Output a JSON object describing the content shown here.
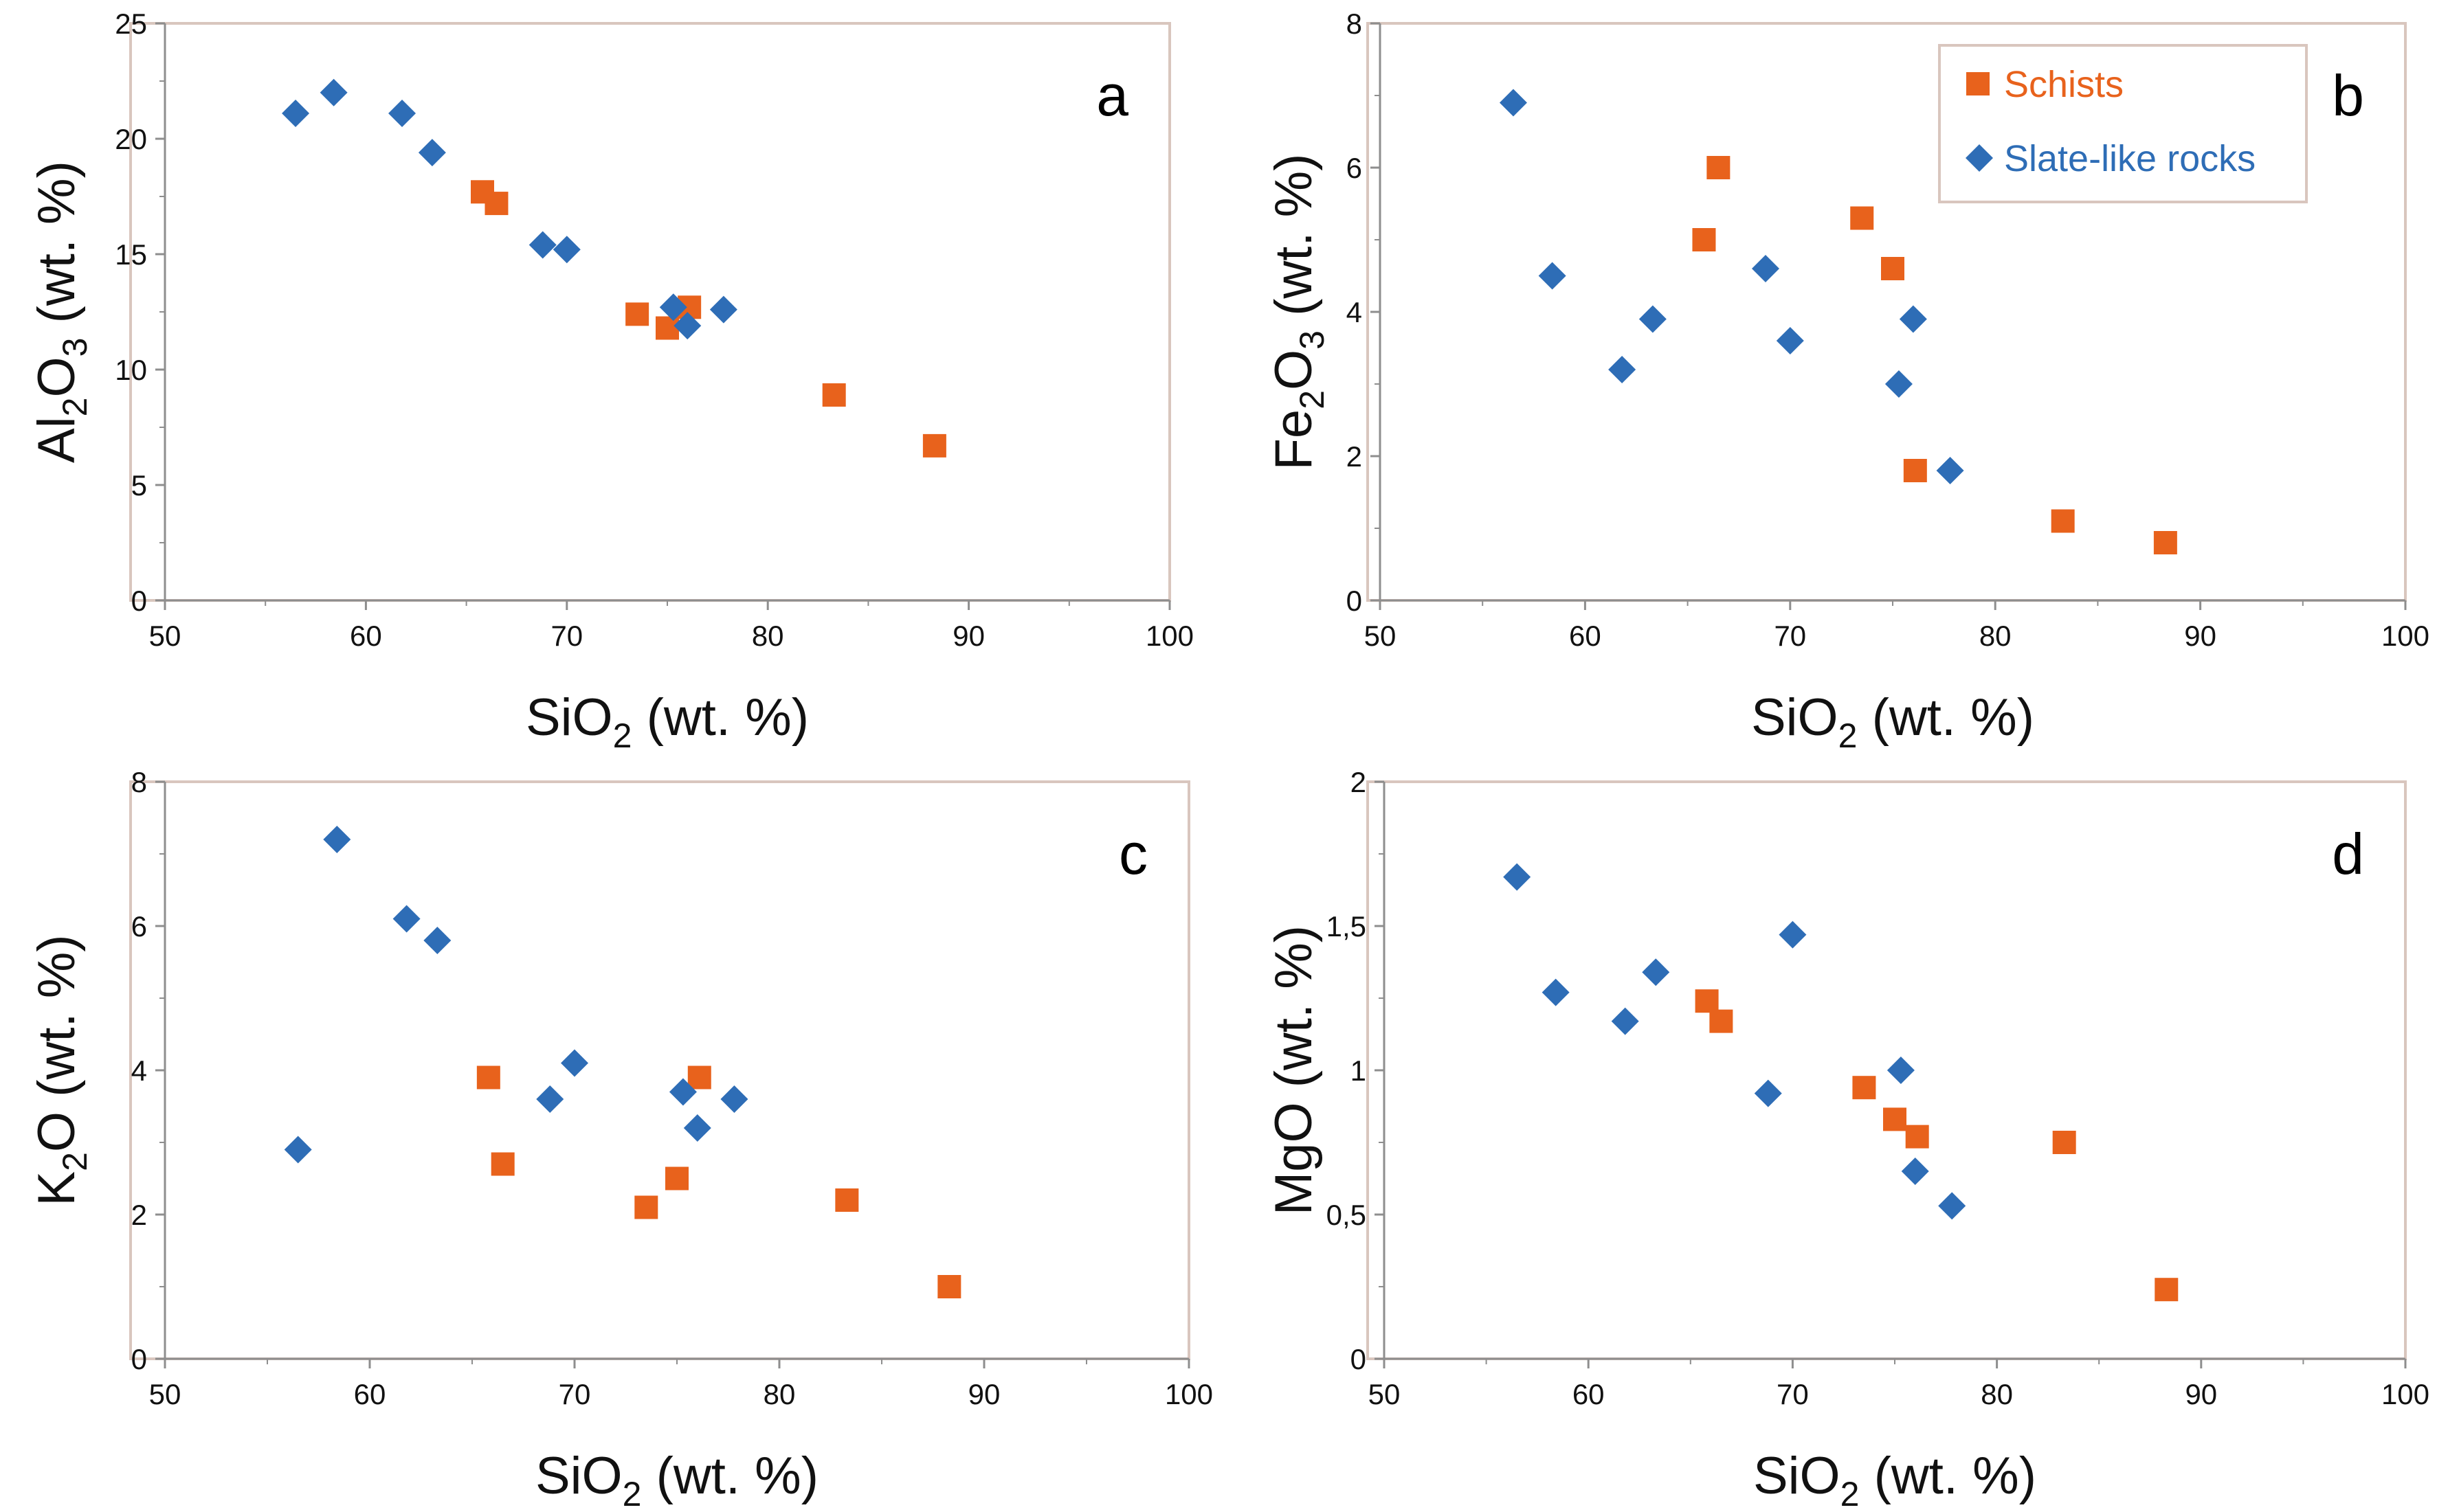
{
  "colors": {
    "schists": "#E8621C",
    "slate": "#2E6DB6",
    "frame": "#D9C6BE",
    "axis": "#8E8E8E"
  },
  "legend": {
    "entries": [
      {
        "name": "Schists",
        "marker": "square",
        "color": "#E8621C"
      },
      {
        "name": "Slate-like rocks",
        "marker": "diamond",
        "color": "#2E6DB6"
      }
    ],
    "placement": "top-right of panel b"
  },
  "chart_data": [
    {
      "panel": "a",
      "type": "scatter",
      "xlabel": {
        "main": "SiO",
        "sub": "2",
        "rest": " (wt. %)"
      },
      "ylabel": {
        "parts": [
          {
            "t": "Al",
            "s": false
          },
          {
            "t": "2",
            "s": true
          },
          {
            "t": "O",
            "s": false
          },
          {
            "t": "3",
            "s": true
          },
          {
            "t": " (wt. %)",
            "s": false
          }
        ]
      },
      "xlim": [
        50,
        100
      ],
      "ylim": [
        0,
        25
      ],
      "xticks": [
        50,
        60,
        70,
        80,
        90,
        100
      ],
      "xtick_labels": [
        "50",
        "60",
        "70",
        "80",
        "90",
        "100"
      ],
      "yticks": [
        0,
        5,
        10,
        15,
        20,
        25
      ],
      "ytick_labels": [
        "0",
        "5",
        "10",
        "15",
        "20",
        "25"
      ],
      "series": [
        {
          "name": "Schists",
          "marker": "square",
          "color": "#E8621C",
          "points": [
            [
              65.8,
              17.7
            ],
            [
              66.5,
              17.2
            ],
            [
              73.5,
              12.4
            ],
            [
              75.0,
              11.8
            ],
            [
              76.1,
              12.7
            ],
            [
              83.3,
              8.9
            ],
            [
              88.3,
              6.7
            ]
          ]
        },
        {
          "name": "Slate-like rocks",
          "marker": "diamond",
          "color": "#2E6DB6",
          "points": [
            [
              56.5,
              21.1
            ],
            [
              58.4,
              22.0
            ],
            [
              61.8,
              21.1
            ],
            [
              63.3,
              19.4
            ],
            [
              68.8,
              15.4
            ],
            [
              70.0,
              15.2
            ],
            [
              75.3,
              12.7
            ],
            [
              76.0,
              11.9
            ],
            [
              77.8,
              12.6
            ]
          ]
        }
      ]
    },
    {
      "panel": "b",
      "type": "scatter",
      "xlabel": {
        "main": "SiO",
        "sub": "2",
        "rest": " (wt. %)"
      },
      "ylabel": {
        "parts": [
          {
            "t": "Fe",
            "s": false
          },
          {
            "t": "2",
            "s": true
          },
          {
            "t": "O",
            "s": false
          },
          {
            "t": "3",
            "s": true
          },
          {
            "t": " (wt. %)",
            "s": false
          }
        ]
      },
      "xlim": [
        50,
        100
      ],
      "ylim": [
        0,
        8
      ],
      "xticks": [
        50,
        60,
        70,
        80,
        90,
        100
      ],
      "xtick_labels": [
        "50",
        "60",
        "70",
        "80",
        "90",
        "100"
      ],
      "yticks": [
        0,
        2,
        4,
        6,
        8
      ],
      "ytick_labels": [
        "0",
        "2",
        "4",
        "6",
        "8"
      ],
      "series": [
        {
          "name": "Schists",
          "marker": "square",
          "color": "#E8621C",
          "points": [
            [
              65.8,
              5.0
            ],
            [
              66.5,
              6.0
            ],
            [
              73.5,
              5.3
            ],
            [
              75.0,
              4.6
            ],
            [
              76.1,
              1.8
            ],
            [
              83.3,
              1.1
            ],
            [
              88.3,
              0.8
            ]
          ]
        },
        {
          "name": "Slate-like rocks",
          "marker": "diamond",
          "color": "#2E6DB6",
          "points": [
            [
              56.5,
              6.9
            ],
            [
              58.4,
              4.5
            ],
            [
              61.8,
              3.2
            ],
            [
              63.3,
              3.9
            ],
            [
              68.8,
              4.6
            ],
            [
              70.0,
              3.6
            ],
            [
              75.3,
              3.0
            ],
            [
              76.0,
              3.9
            ],
            [
              77.8,
              1.8
            ]
          ]
        }
      ]
    },
    {
      "panel": "c",
      "type": "scatter",
      "xlabel": {
        "main": "SiO",
        "sub": "2",
        "rest": " (wt. %)"
      },
      "ylabel": {
        "parts": [
          {
            "t": "K",
            "s": false
          },
          {
            "t": "2",
            "s": true
          },
          {
            "t": "O (wt. %)",
            "s": false
          }
        ]
      },
      "xlim": [
        50,
        100
      ],
      "ylim": [
        0,
        8
      ],
      "xticks": [
        50,
        60,
        70,
        80,
        90,
        100
      ],
      "xtick_labels": [
        "50",
        "60",
        "70",
        "80",
        "90",
        "100"
      ],
      "yticks": [
        0,
        2,
        4,
        6,
        8
      ],
      "ytick_labels": [
        "0",
        "2",
        "4",
        "6",
        "8"
      ],
      "series": [
        {
          "name": "Schists",
          "marker": "square",
          "color": "#E8621C",
          "points": [
            [
              65.8,
              3.9
            ],
            [
              66.5,
              2.7
            ],
            [
              73.5,
              2.1
            ],
            [
              75.0,
              2.5
            ],
            [
              76.1,
              3.9
            ],
            [
              83.3,
              2.2
            ],
            [
              88.3,
              1.0
            ]
          ]
        },
        {
          "name": "Slate-like rocks",
          "marker": "diamond",
          "color": "#2E6DB6",
          "points": [
            [
              56.5,
              2.9
            ],
            [
              58.4,
              7.2
            ],
            [
              61.8,
              6.1
            ],
            [
              63.3,
              5.8
            ],
            [
              68.8,
              3.6
            ],
            [
              70.0,
              4.1
            ],
            [
              75.3,
              3.7
            ],
            [
              76.0,
              3.2
            ],
            [
              77.8,
              3.6
            ]
          ]
        }
      ]
    },
    {
      "panel": "d",
      "type": "scatter",
      "xlabel": {
        "main": "SiO",
        "sub": "2",
        "rest": " (wt. %)"
      },
      "ylabel": {
        "parts": [
          {
            "t": "MgO (wt. %)",
            "s": false
          }
        ]
      },
      "xlim": [
        50,
        100
      ],
      "ylim": [
        0,
        2
      ],
      "xticks": [
        50,
        60,
        70,
        80,
        90,
        100
      ],
      "xtick_labels": [
        "50",
        "60",
        "70",
        "80",
        "90",
        "100"
      ],
      "yticks": [
        0,
        0.5,
        1,
        1.5,
        2
      ],
      "ytick_labels": [
        "0",
        "0,5",
        "1",
        "1,5",
        "2"
      ],
      "series": [
        {
          "name": "Schists",
          "marker": "square",
          "color": "#E8621C",
          "points": [
            [
              65.8,
              1.24
            ],
            [
              66.5,
              1.17
            ],
            [
              73.5,
              0.94
            ],
            [
              75.0,
              0.83
            ],
            [
              76.1,
              0.77
            ],
            [
              83.3,
              0.75
            ],
            [
              88.3,
              0.24
            ]
          ]
        },
        {
          "name": "Slate-like rocks",
          "marker": "diamond",
          "color": "#2E6DB6",
          "points": [
            [
              56.5,
              1.67
            ],
            [
              58.4,
              1.27
            ],
            [
              61.8,
              1.17
            ],
            [
              63.3,
              1.34
            ],
            [
              68.8,
              0.92
            ],
            [
              70.0,
              1.47
            ],
            [
              75.3,
              1.0
            ],
            [
              76.0,
              0.65
            ],
            [
              77.8,
              0.53
            ]
          ]
        }
      ]
    }
  ]
}
